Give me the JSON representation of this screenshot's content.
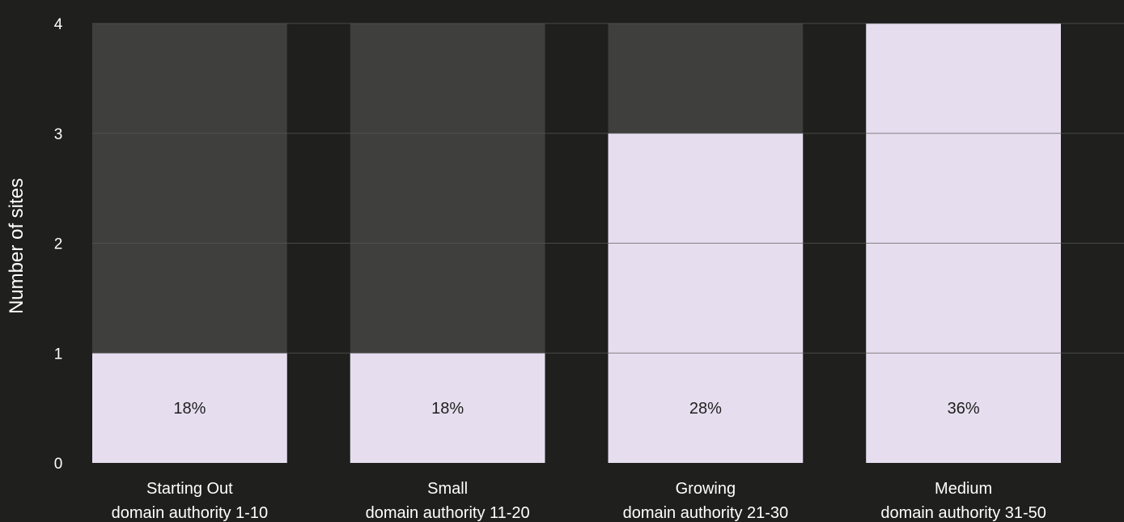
{
  "chart_data": {
    "type": "bar",
    "ylabel": "Number of sites",
    "ylim": [
      0,
      4
    ],
    "yticks": [
      0,
      1,
      2,
      3,
      4
    ],
    "grid": true,
    "categories": [
      {
        "name": "Starting Out",
        "sub": "domain authority 1-10"
      },
      {
        "name": "Small",
        "sub": "domain authority 11-20"
      },
      {
        "name": "Growing",
        "sub": "domain authority 21-30"
      },
      {
        "name": "Medium",
        "sub": "domain authority 31-50"
      }
    ],
    "values": [
      1,
      1,
      3,
      4
    ],
    "background_values": [
      4,
      4,
      4,
      4
    ],
    "labels": [
      "18%",
      "18%",
      "28%",
      "36%"
    ],
    "colors": {
      "bar": "#e6ddef",
      "background_bar": "#3f3f3d",
      "page": "#1f1f1d",
      "grid": "#5a5a58",
      "text": "#ffffff",
      "label_text": "#1f1f1d"
    }
  }
}
